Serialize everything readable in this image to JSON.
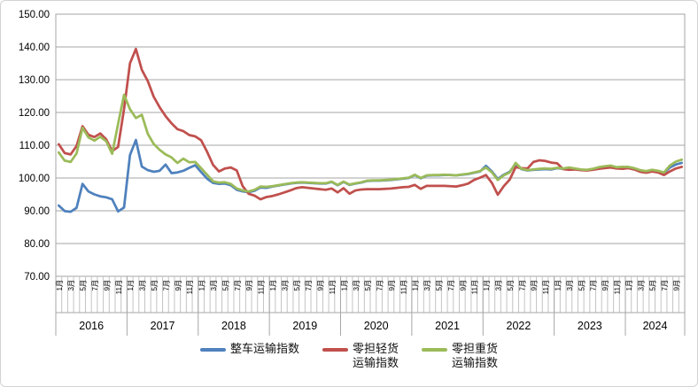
{
  "chart_data": {
    "type": "line",
    "title": "",
    "y_axis": {
      "min": 70,
      "max": 150,
      "step": 10,
      "tick_labels": [
        "70.00",
        "80.00",
        "90.00",
        "100.00",
        "110.00",
        "120.00",
        "130.00",
        "140.00",
        "150.00"
      ]
    },
    "x_axis": {
      "month_tick_labels": [
        "1月",
        "3月",
        "5月",
        "7月",
        "9月",
        "11月"
      ],
      "years": [
        {
          "label": "2016",
          "months": 12
        },
        {
          "label": "2017",
          "months": 12
        },
        {
          "label": "2018",
          "months": 12
        },
        {
          "label": "2019",
          "months": 12
        },
        {
          "label": "2020",
          "months": 12
        },
        {
          "label": "2021",
          "months": 12
        },
        {
          "label": "2022",
          "months": 12
        },
        {
          "label": "2023",
          "months": 12
        },
        {
          "label": "2024",
          "months": 10
        }
      ]
    },
    "grid": true,
    "legend_position": "bottom",
    "series": [
      {
        "name": "整车运输指数",
        "color": "#4F81BD",
        "values": [
          91.6,
          89.9,
          89.7,
          90.9,
          98.2,
          95.9,
          95.0,
          94.4,
          94.1,
          93.5,
          89.8,
          91.0,
          107.0,
          111.6,
          103.5,
          102.4,
          101.9,
          102.2,
          104.1,
          101.5,
          101.7,
          102.2,
          103.1,
          103.9,
          101.8,
          99.8,
          98.5,
          98.2,
          98.3,
          97.8,
          96.4,
          95.9,
          95.7,
          96.1,
          97.1,
          97.0,
          97.4,
          97.7,
          98.0,
          98.3,
          98.5,
          98.6,
          98.5,
          98.4,
          98.3,
          98.3,
          98.8,
          97.8,
          98.8,
          97.9,
          98.3,
          98.6,
          99.1,
          99.2,
          99.2,
          99.3,
          99.4,
          99.6,
          99.8,
          100.0,
          100.9,
          99.9,
          100.7,
          100.8,
          100.8,
          100.9,
          100.9,
          100.8,
          101.0,
          101.2,
          101.6,
          102.0,
          103.7,
          102.0,
          99.7,
          101.0,
          101.9,
          104.2,
          102.7,
          102.3,
          102.5,
          102.6,
          102.7,
          102.6,
          103.0,
          102.8,
          103.1,
          102.8,
          102.5,
          102.4,
          102.7,
          103.2,
          103.5,
          103.7,
          103.2,
          103.3,
          103.3,
          102.9,
          102.3,
          102.0,
          102.4,
          102.1,
          101.6,
          103.2,
          104.1,
          104.6
        ]
      },
      {
        "name": "零担轻货运输指数",
        "color": "#C0504D",
        "values": [
          110.3,
          107.6,
          107.2,
          109.8,
          115.8,
          113.2,
          112.5,
          113.6,
          111.8,
          108.2,
          109.5,
          121.0,
          135.0,
          139.4,
          133.0,
          129.6,
          124.8,
          121.6,
          118.9,
          116.7,
          114.9,
          114.3,
          113.1,
          112.7,
          111.5,
          108.0,
          104.0,
          102.0,
          102.9,
          103.2,
          102.3,
          97.5,
          95.2,
          94.6,
          93.5,
          94.2,
          94.5,
          95.0,
          95.6,
          96.2,
          96.9,
          97.2,
          97.0,
          96.8,
          96.6,
          96.4,
          96.8,
          95.6,
          96.9,
          95.2,
          96.2,
          96.5,
          96.6,
          96.6,
          96.6,
          96.7,
          96.8,
          97.0,
          97.2,
          97.3,
          97.9,
          96.7,
          97.6,
          97.6,
          97.6,
          97.6,
          97.5,
          97.4,
          97.8,
          98.3,
          99.4,
          100.1,
          100.9,
          98.5,
          94.9,
          97.5,
          99.5,
          103.3,
          103.0,
          102.9,
          104.9,
          105.4,
          105.2,
          104.7,
          104.5,
          102.7,
          102.5,
          102.6,
          102.4,
          102.3,
          102.5,
          102.8,
          103.0,
          103.2,
          102.9,
          102.8,
          103.0,
          102.6,
          101.9,
          101.6,
          102.0,
          101.7,
          100.9,
          102.0,
          102.9,
          103.4
        ]
      },
      {
        "name": "零担重货运输指数",
        "color": "#9BBB59",
        "values": [
          107.8,
          105.3,
          104.9,
          107.5,
          115.3,
          112.4,
          111.4,
          112.6,
          111.2,
          107.4,
          116.5,
          125.4,
          121.0,
          118.3,
          119.3,
          113.5,
          110.4,
          108.6,
          107.2,
          106.3,
          104.6,
          105.9,
          104.8,
          104.9,
          103.0,
          101.0,
          99.0,
          98.6,
          98.7,
          98.2,
          96.8,
          96.2,
          95.9,
          96.4,
          97.4,
          97.3,
          97.5,
          97.8,
          98.1,
          98.4,
          98.6,
          98.7,
          98.6,
          98.5,
          98.4,
          98.4,
          98.9,
          97.9,
          98.9,
          98.0,
          98.4,
          98.7,
          99.2,
          99.3,
          99.3,
          99.4,
          99.5,
          99.7,
          99.9,
          100.1,
          101.0,
          100.0,
          100.8,
          100.9,
          100.9,
          101.0,
          100.9,
          100.8,
          101.1,
          101.3,
          101.7,
          102.1,
          103.2,
          101.7,
          99.4,
          100.8,
          101.7,
          104.6,
          102.8,
          102.4,
          102.6,
          102.8,
          102.9,
          102.8,
          103.1,
          102.9,
          103.2,
          102.9,
          102.6,
          102.5,
          102.8,
          103.3,
          103.6,
          103.8,
          103.3,
          103.4,
          103.4,
          103.0,
          102.4,
          102.1,
          102.5,
          102.2,
          101.7,
          103.8,
          105.0,
          105.6
        ]
      }
    ],
    "legend": {
      "entries": [
        {
          "line1": "整车运输指数",
          "line2": ""
        },
        {
          "line1": "零担轻货",
          "line2": "运输指数"
        },
        {
          "line1": "零担重货",
          "line2": "运输指数"
        }
      ]
    }
  },
  "colors": {
    "grid": "#A6A6A6",
    "month_tick": "#C3C3C3",
    "axis_text": "#000000",
    "frame_border": "#D3D3D3"
  }
}
